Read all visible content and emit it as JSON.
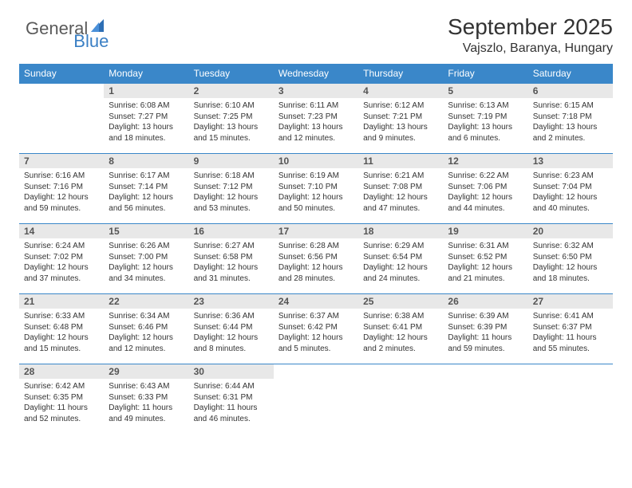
{
  "logo": {
    "general": "General",
    "blue": "Blue"
  },
  "title": "September 2025",
  "location": "Vajszlo, Baranya, Hungary",
  "colors": {
    "header_bg": "#3a87c9",
    "header_fg": "#ffffff",
    "daynum_bg": "#e8e8e8",
    "rule": "#3a87c9",
    "logo_general": "#5a5a5a",
    "logo_blue": "#3a7fc4",
    "text": "#333333",
    "background": "#ffffff"
  },
  "typography": {
    "title_fontsize": 28,
    "location_fontsize": 16,
    "dayheader_fontsize": 12,
    "daynum_fontsize": 12,
    "body_fontsize": 10
  },
  "day_headers": [
    "Sunday",
    "Monday",
    "Tuesday",
    "Wednesday",
    "Thursday",
    "Friday",
    "Saturday"
  ],
  "weeks": [
    [
      {
        "n": "",
        "sr": "",
        "ss": "",
        "dl": ""
      },
      {
        "n": "1",
        "sr": "Sunrise: 6:08 AM",
        "ss": "Sunset: 7:27 PM",
        "dl": "Daylight: 13 hours and 18 minutes."
      },
      {
        "n": "2",
        "sr": "Sunrise: 6:10 AM",
        "ss": "Sunset: 7:25 PM",
        "dl": "Daylight: 13 hours and 15 minutes."
      },
      {
        "n": "3",
        "sr": "Sunrise: 6:11 AM",
        "ss": "Sunset: 7:23 PM",
        "dl": "Daylight: 13 hours and 12 minutes."
      },
      {
        "n": "4",
        "sr": "Sunrise: 6:12 AM",
        "ss": "Sunset: 7:21 PM",
        "dl": "Daylight: 13 hours and 9 minutes."
      },
      {
        "n": "5",
        "sr": "Sunrise: 6:13 AM",
        "ss": "Sunset: 7:19 PM",
        "dl": "Daylight: 13 hours and 6 minutes."
      },
      {
        "n": "6",
        "sr": "Sunrise: 6:15 AM",
        "ss": "Sunset: 7:18 PM",
        "dl": "Daylight: 13 hours and 2 minutes."
      }
    ],
    [
      {
        "n": "7",
        "sr": "Sunrise: 6:16 AM",
        "ss": "Sunset: 7:16 PM",
        "dl": "Daylight: 12 hours and 59 minutes."
      },
      {
        "n": "8",
        "sr": "Sunrise: 6:17 AM",
        "ss": "Sunset: 7:14 PM",
        "dl": "Daylight: 12 hours and 56 minutes."
      },
      {
        "n": "9",
        "sr": "Sunrise: 6:18 AM",
        "ss": "Sunset: 7:12 PM",
        "dl": "Daylight: 12 hours and 53 minutes."
      },
      {
        "n": "10",
        "sr": "Sunrise: 6:19 AM",
        "ss": "Sunset: 7:10 PM",
        "dl": "Daylight: 12 hours and 50 minutes."
      },
      {
        "n": "11",
        "sr": "Sunrise: 6:21 AM",
        "ss": "Sunset: 7:08 PM",
        "dl": "Daylight: 12 hours and 47 minutes."
      },
      {
        "n": "12",
        "sr": "Sunrise: 6:22 AM",
        "ss": "Sunset: 7:06 PM",
        "dl": "Daylight: 12 hours and 44 minutes."
      },
      {
        "n": "13",
        "sr": "Sunrise: 6:23 AM",
        "ss": "Sunset: 7:04 PM",
        "dl": "Daylight: 12 hours and 40 minutes."
      }
    ],
    [
      {
        "n": "14",
        "sr": "Sunrise: 6:24 AM",
        "ss": "Sunset: 7:02 PM",
        "dl": "Daylight: 12 hours and 37 minutes."
      },
      {
        "n": "15",
        "sr": "Sunrise: 6:26 AM",
        "ss": "Sunset: 7:00 PM",
        "dl": "Daylight: 12 hours and 34 minutes."
      },
      {
        "n": "16",
        "sr": "Sunrise: 6:27 AM",
        "ss": "Sunset: 6:58 PM",
        "dl": "Daylight: 12 hours and 31 minutes."
      },
      {
        "n": "17",
        "sr": "Sunrise: 6:28 AM",
        "ss": "Sunset: 6:56 PM",
        "dl": "Daylight: 12 hours and 28 minutes."
      },
      {
        "n": "18",
        "sr": "Sunrise: 6:29 AM",
        "ss": "Sunset: 6:54 PM",
        "dl": "Daylight: 12 hours and 24 minutes."
      },
      {
        "n": "19",
        "sr": "Sunrise: 6:31 AM",
        "ss": "Sunset: 6:52 PM",
        "dl": "Daylight: 12 hours and 21 minutes."
      },
      {
        "n": "20",
        "sr": "Sunrise: 6:32 AM",
        "ss": "Sunset: 6:50 PM",
        "dl": "Daylight: 12 hours and 18 minutes."
      }
    ],
    [
      {
        "n": "21",
        "sr": "Sunrise: 6:33 AM",
        "ss": "Sunset: 6:48 PM",
        "dl": "Daylight: 12 hours and 15 minutes."
      },
      {
        "n": "22",
        "sr": "Sunrise: 6:34 AM",
        "ss": "Sunset: 6:46 PM",
        "dl": "Daylight: 12 hours and 12 minutes."
      },
      {
        "n": "23",
        "sr": "Sunrise: 6:36 AM",
        "ss": "Sunset: 6:44 PM",
        "dl": "Daylight: 12 hours and 8 minutes."
      },
      {
        "n": "24",
        "sr": "Sunrise: 6:37 AM",
        "ss": "Sunset: 6:42 PM",
        "dl": "Daylight: 12 hours and 5 minutes."
      },
      {
        "n": "25",
        "sr": "Sunrise: 6:38 AM",
        "ss": "Sunset: 6:41 PM",
        "dl": "Daylight: 12 hours and 2 minutes."
      },
      {
        "n": "26",
        "sr": "Sunrise: 6:39 AM",
        "ss": "Sunset: 6:39 PM",
        "dl": "Daylight: 11 hours and 59 minutes."
      },
      {
        "n": "27",
        "sr": "Sunrise: 6:41 AM",
        "ss": "Sunset: 6:37 PM",
        "dl": "Daylight: 11 hours and 55 minutes."
      }
    ],
    [
      {
        "n": "28",
        "sr": "Sunrise: 6:42 AM",
        "ss": "Sunset: 6:35 PM",
        "dl": "Daylight: 11 hours and 52 minutes."
      },
      {
        "n": "29",
        "sr": "Sunrise: 6:43 AM",
        "ss": "Sunset: 6:33 PM",
        "dl": "Daylight: 11 hours and 49 minutes."
      },
      {
        "n": "30",
        "sr": "Sunrise: 6:44 AM",
        "ss": "Sunset: 6:31 PM",
        "dl": "Daylight: 11 hours and 46 minutes."
      },
      {
        "n": "",
        "sr": "",
        "ss": "",
        "dl": ""
      },
      {
        "n": "",
        "sr": "",
        "ss": "",
        "dl": ""
      },
      {
        "n": "",
        "sr": "",
        "ss": "",
        "dl": ""
      },
      {
        "n": "",
        "sr": "",
        "ss": "",
        "dl": ""
      }
    ]
  ]
}
